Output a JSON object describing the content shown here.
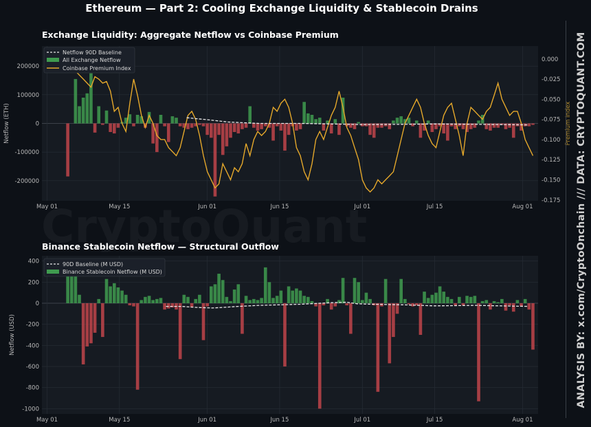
{
  "title": "Ethereum — Part 2: Cooling Exchange Liquidity & Stablecoin Drains",
  "credit": "ANALYSIS BY: x.com/CryptoOnchain   ///   DATA: CRYPTOQUANT.COM",
  "watermark": "CryptoQuant",
  "colors": {
    "background": "#0d1117",
    "panel": "#161b22",
    "positive": "#3f9b4f",
    "negative": "#c0444a",
    "premium": "#e5a82b",
    "baseline": "#e8e8e8",
    "premium_axis_label": "#b08a2e"
  },
  "chart_data": [
    {
      "type": "bar",
      "title": "Exchange Liquidity: Aggregate Netflow vs Coinbase Premium",
      "xlabel": "",
      "ylabel": "Netflow (ETH)",
      "y2label": "Premium Index",
      "ylim": [
        -270000,
        270000
      ],
      "y2lim": [
        -0.176,
        0.016
      ],
      "yticks": [
        200000,
        100000,
        0,
        -100000,
        -200000
      ],
      "y2ticks": [
        0.0,
        -0.025,
        -0.05,
        -0.075,
        -0.1,
        -0.125,
        -0.15,
        -0.175
      ],
      "x_start": "2025-04-30",
      "xlim_days": [
        0,
        96
      ],
      "xticks": [
        {
          "day": 1,
          "label": "May 01"
        },
        {
          "day": 15,
          "label": "May 15"
        },
        {
          "day": 32,
          "label": "Jun 01"
        },
        {
          "day": 46,
          "label": "Jun 15"
        },
        {
          "day": 62,
          "label": "Jul 01"
        },
        {
          "day": 76,
          "label": "Jul 15"
        },
        {
          "day": 93,
          "label": "Aug 01"
        }
      ],
      "grid": true,
      "legend_position": "top-left",
      "legend": [
        "Netflow 90D Baseline",
        "All Exchange Netflow",
        "Coinbase Premium Index"
      ],
      "series": [
        {
          "name": "All Exchange Netflow",
          "kind": "bar",
          "start_day": 5,
          "step_days": 0.75,
          "values": [
            -185000,
            0,
            155000,
            60000,
            90000,
            105000,
            175000,
            -32000,
            60000,
            -5000,
            45000,
            -30000,
            -35000,
            -15000,
            5000,
            20000,
            32000,
            -10000,
            30000,
            25000,
            -15000,
            40000,
            -70000,
            -100000,
            30000,
            -10000,
            -65000,
            25000,
            20000,
            -10000,
            -15000,
            -20000,
            -15000,
            -10000,
            -5000,
            -10000,
            -40000,
            -50000,
            -255000,
            -40000,
            -110000,
            -80000,
            -50000,
            -30000,
            -35000,
            -20000,
            -15000,
            60000,
            -15000,
            -25000,
            -20000,
            -10000,
            -15000,
            -60000,
            -10000,
            -25000,
            -95000,
            -40000,
            -10000,
            -25000,
            -20000,
            75000,
            35000,
            30000,
            15000,
            20000,
            -25000,
            10000,
            -35000,
            15000,
            -40000,
            90000,
            -10000,
            -15000,
            -20000,
            5000,
            -10000,
            -10000,
            -40000,
            -50000,
            -15000,
            -15000,
            -10000,
            -20000,
            10000,
            20000,
            25000,
            15000,
            20000,
            -10000,
            10000,
            -50000,
            -25000,
            10000,
            -30000,
            -20000,
            -10000,
            -35000,
            -60000,
            -10000,
            -20000,
            -10000,
            -20000,
            -30000,
            -20000,
            -15000,
            10000,
            30000,
            -20000,
            -25000,
            -15000,
            -15000,
            -5000,
            -20000,
            -15000,
            -50000,
            -10000,
            -25000,
            -10000,
            -10000,
            -5000,
            5000
          ]
        },
        {
          "name": "Netflow 90D Baseline",
          "kind": "line",
          "points": [
            [
              28,
              20000
            ],
            [
              32,
              13000
            ],
            [
              36,
              5000
            ],
            [
              42,
              0
            ],
            [
              50,
              0
            ],
            [
              56,
              -2000
            ],
            [
              62,
              -4000
            ],
            [
              70,
              -3000
            ],
            [
              76,
              -2000
            ],
            [
              84,
              -3000
            ],
            [
              94,
              -5000
            ]
          ]
        },
        {
          "name": "Coinbase Premium Index",
          "kind": "line",
          "axis": "right",
          "start_day": 5,
          "step_days": 0.75,
          "values": [
            -0.01,
            -0.005,
            -0.015,
            -0.02,
            -0.025,
            -0.03,
            -0.035,
            -0.022,
            -0.025,
            -0.03,
            -0.028,
            -0.04,
            -0.065,
            -0.06,
            -0.08,
            -0.09,
            -0.055,
            -0.025,
            -0.045,
            -0.07,
            -0.085,
            -0.07,
            -0.08,
            -0.095,
            -0.1,
            -0.1,
            -0.11,
            -0.115,
            -0.12,
            -0.11,
            -0.09,
            -0.07,
            -0.065,
            -0.075,
            -0.095,
            -0.12,
            -0.14,
            -0.15,
            -0.16,
            -0.155,
            -0.13,
            -0.14,
            -0.15,
            -0.135,
            -0.14,
            -0.13,
            -0.105,
            -0.12,
            -0.1,
            -0.09,
            -0.095,
            -0.09,
            -0.08,
            -0.06,
            -0.065,
            -0.055,
            -0.05,
            -0.06,
            -0.08,
            -0.11,
            -0.12,
            -0.14,
            -0.15,
            -0.13,
            -0.1,
            -0.09,
            -0.1,
            -0.085,
            -0.07,
            -0.06,
            -0.04,
            -0.06,
            -0.085,
            -0.095,
            -0.11,
            -0.125,
            -0.15,
            -0.16,
            -0.165,
            -0.16,
            -0.15,
            -0.155,
            -0.15,
            -0.145,
            -0.14,
            -0.12,
            -0.1,
            -0.08,
            -0.07,
            -0.06,
            -0.05,
            -0.06,
            -0.08,
            -0.095,
            -0.105,
            -0.11,
            -0.09,
            -0.07,
            -0.06,
            -0.055,
            -0.075,
            -0.095,
            -0.12,
            -0.08,
            -0.06,
            -0.065,
            -0.07,
            -0.075,
            -0.065,
            -0.06,
            -0.045,
            -0.03,
            -0.05,
            -0.06,
            -0.07,
            -0.065,
            -0.065,
            -0.08,
            -0.1,
            -0.11,
            -0.12,
            -0.11,
            -0.1,
            -0.095,
            -0.1,
            -0.09,
            -0.08,
            -0.08,
            -0.09,
            -0.1,
            -0.095
          ]
        }
      ]
    },
    {
      "type": "bar",
      "title": "Binance Stablecoin Netflow — Structural Outflow",
      "xlabel": "",
      "ylabel": "Netflow (USD)",
      "ylim": [
        -1050,
        450
      ],
      "yticks": [
        400,
        200,
        0,
        -200,
        -400,
        -600,
        -800,
        -1000
      ],
      "x_start": "2025-04-30",
      "xlim_days": [
        0,
        96
      ],
      "xticks": [
        {
          "day": 1,
          "label": "May 01"
        },
        {
          "day": 15,
          "label": "May 15"
        },
        {
          "day": 32,
          "label": "Jun 01"
        },
        {
          "day": 46,
          "label": "Jun 15"
        },
        {
          "day": 62,
          "label": "Jul 01"
        },
        {
          "day": 76,
          "label": "Jul 15"
        },
        {
          "day": 93,
          "label": "Aug 01"
        }
      ],
      "grid": true,
      "legend_position": "top-left",
      "legend": [
        "90D Baseline (M USD)",
        "Binance Stablecoin Netflow (M USD)"
      ],
      "series": [
        {
          "name": "Binance Stablecoin Netflow (M USD)",
          "kind": "bar",
          "start_day": 5,
          "step_days": 0.75,
          "values": [
            380,
            280,
            300,
            80,
            -580,
            -410,
            -380,
            -280,
            40,
            -320,
            230,
            160,
            190,
            150,
            120,
            80,
            -20,
            -30,
            -820,
            30,
            60,
            70,
            30,
            40,
            50,
            -60,
            -50,
            -40,
            -60,
            -530,
            80,
            60,
            -40,
            40,
            80,
            -350,
            -30,
            160,
            180,
            280,
            220,
            60,
            20,
            130,
            180,
            -290,
            70,
            30,
            40,
            30,
            50,
            340,
            200,
            50,
            70,
            120,
            -600,
            160,
            120,
            140,
            120,
            70,
            60,
            20,
            -30,
            -1000,
            -20,
            40,
            -60,
            -30,
            30,
            240,
            -20,
            -290,
            240,
            200,
            30,
            100,
            40,
            -20,
            -840,
            -30,
            230,
            -570,
            -320,
            -100,
            230,
            40,
            -10,
            -30,
            -20,
            -300,
            110,
            50,
            80,
            100,
            160,
            110,
            60,
            40,
            -20,
            60,
            -20,
            70,
            60,
            70,
            -930,
            20,
            30,
            -60,
            20,
            10,
            40,
            -70,
            -20,
            -80,
            30,
            -30,
            40,
            -60,
            -440,
            40,
            30,
            -30,
            -50
          ]
        },
        {
          "name": "90D Baseline (M USD)",
          "kind": "line",
          "points": [
            [
              24,
              -30
            ],
            [
              27,
              -30
            ],
            [
              30,
              -40
            ],
            [
              33,
              -45
            ],
            [
              35,
              -40
            ],
            [
              38,
              -30
            ],
            [
              42,
              -20
            ],
            [
              50,
              -10
            ],
            [
              56,
              5
            ],
            [
              59,
              10
            ],
            [
              61,
              -5
            ],
            [
              64,
              -10
            ],
            [
              70,
              -15
            ],
            [
              76,
              -25
            ],
            [
              84,
              -20
            ],
            [
              94,
              -30
            ]
          ]
        }
      ]
    }
  ]
}
